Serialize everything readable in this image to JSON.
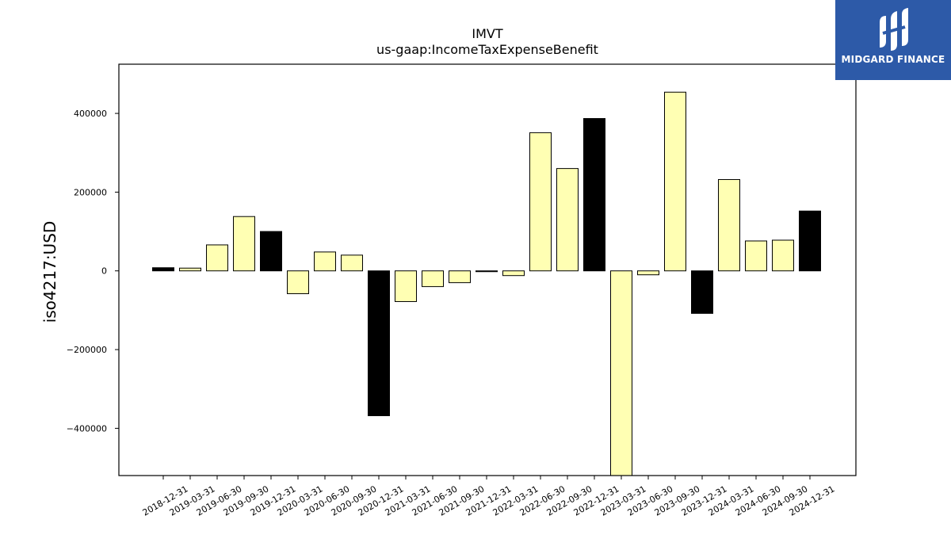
{
  "chart_data": {
    "type": "bar",
    "title": "IMVT",
    "subtitle": "us-gaap:IncomeTaxExpenseBenefit",
    "ylabel": "iso4217:USD",
    "xlabel": "",
    "ylim": [
      -520000,
      525000
    ],
    "yticks": [
      -400000,
      -200000,
      0,
      200000,
      400000
    ],
    "grid": false,
    "categories": [
      "2018-12-31",
      "2019-03-31",
      "2019-06-30",
      "2019-09-30",
      "2019-12-31",
      "2020-03-31",
      "2020-06-30",
      "2020-09-30",
      "2020-12-31",
      "2021-03-31",
      "2021-06-30",
      "2021-09-30",
      "2021-12-31",
      "2022-03-31",
      "2022-06-30",
      "2022-09-30",
      "2022-12-31",
      "2023-03-31",
      "2023-06-30",
      "2023-09-30",
      "2023-12-31",
      "2024-03-31",
      "2024-06-30",
      "2024-09-30",
      "2024-12-31"
    ],
    "values": [
      8000,
      7000,
      66000,
      138000,
      100000,
      -58000,
      48000,
      40000,
      -368000,
      -78000,
      -40000,
      -30000,
      -1000,
      -12000,
      351000,
      260000,
      387000,
      -540000,
      -10000,
      454000,
      -108000,
      232000,
      76000,
      78000,
      152000
    ],
    "bar_colors": [
      "#000000",
      "#ffffb3",
      "#ffffb3",
      "#ffffb3",
      "#000000",
      "#ffffb3",
      "#ffffb3",
      "#ffffb3",
      "#000000",
      "#ffffb3",
      "#ffffb3",
      "#ffffb3",
      "#000000",
      "#ffffb3",
      "#ffffb3",
      "#ffffb3",
      "#000000",
      "#ffffb3",
      "#ffffb3",
      "#ffffb3",
      "#000000",
      "#ffffb3",
      "#ffffb3",
      "#ffffb3",
      "#000000"
    ]
  },
  "logo": {
    "text": "MIDGARD FINANCE",
    "background": "#2d5aa8"
  }
}
